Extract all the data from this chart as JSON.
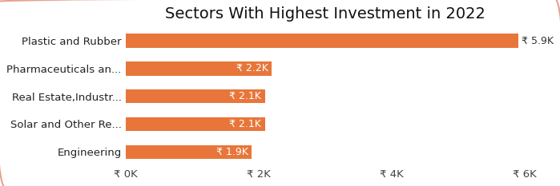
{
  "title": "Sectors With Highest Investment in 2022",
  "categories": [
    "Plastic and Rubber",
    "Pharmaceuticals an...",
    "Real Estate,Industr...",
    "Solar and Other Re...",
    "Engineering"
  ],
  "values": [
    5900,
    2200,
    2100,
    2100,
    1900
  ],
  "bar_color": "#E8763A",
  "bar_labels": [
    "₹ 5.9K",
    "₹ 2.2K",
    "₹ 2.1K",
    "₹ 2.1K",
    "₹ 1.9K"
  ],
  "bar_label_outside": [
    true,
    false,
    false,
    false,
    false
  ],
  "xlim": [
    0,
    6000
  ],
  "xticks": [
    0,
    2000,
    4000,
    6000
  ],
  "xtick_labels": [
    "₹ 0K",
    "₹ 2K",
    "₹ 4K",
    "₹ 6K"
  ],
  "background_color": "#ffffff",
  "border_color": "#E8A090",
  "title_fontsize": 14,
  "label_fontsize": 9.5,
  "bar_label_fontsize": 9,
  "tick_label_fontsize": 9.5,
  "bar_height": 0.5
}
